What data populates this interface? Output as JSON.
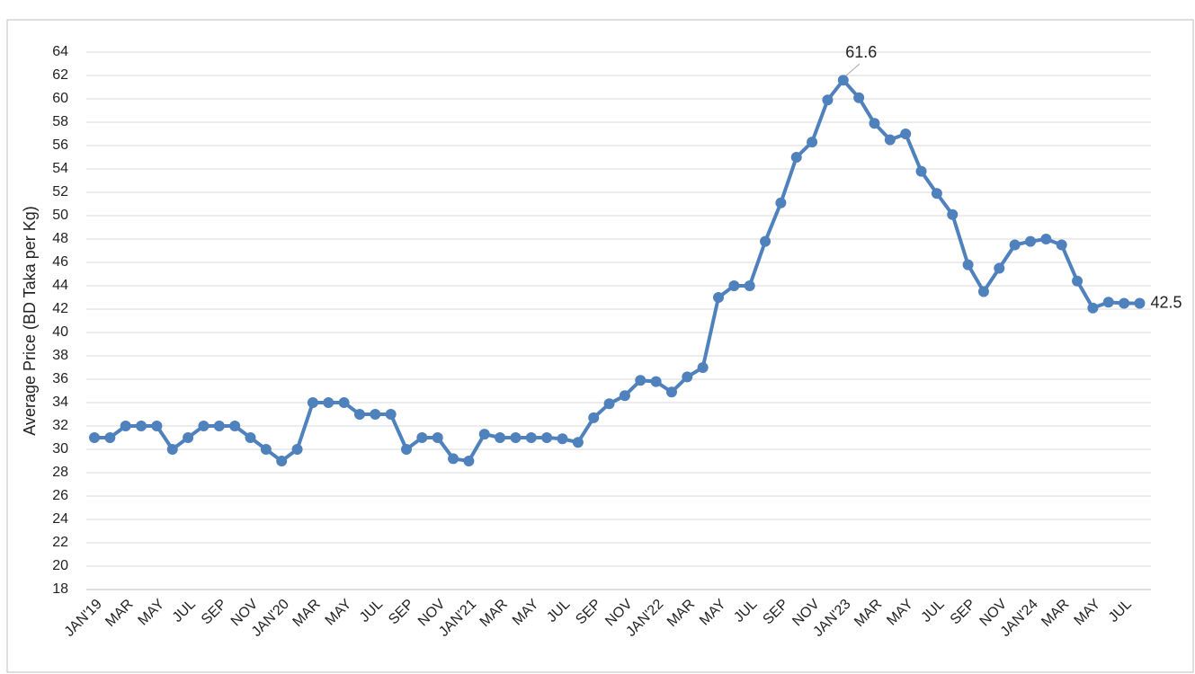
{
  "chart_data": {
    "type": "line",
    "y_label": "Average Price (BD Taka per Kg)",
    "categories": [
      "JAN'19",
      null,
      "MAR",
      null,
      "MAY",
      null,
      "JUL",
      null,
      "SEP",
      null,
      "NOV",
      null,
      "JAN'20",
      null,
      "MAR",
      null,
      "MAY",
      null,
      "JUL",
      null,
      "SEP",
      null,
      "NOV",
      null,
      "JAN'21",
      null,
      "MAR",
      null,
      "MAY",
      null,
      "JUL",
      null,
      "SEP",
      null,
      "NOV",
      null,
      "JAN'22",
      null,
      "MAR",
      null,
      "MAY",
      null,
      "JUL",
      null,
      "SEP",
      null,
      "NOV",
      null,
      "JAN'23",
      null,
      "MAR",
      null,
      "MAY",
      null,
      "JUL",
      null,
      "SEP",
      null,
      "NOV",
      null,
      "JAN'24",
      null,
      "MAR",
      null,
      "MAY",
      null,
      "JUL",
      null
    ],
    "series": [
      {
        "color": "#4f81bd",
        "values": [
          31,
          31,
          32,
          32,
          32,
          30,
          31,
          32,
          32,
          32,
          31,
          30,
          29,
          30,
          34,
          34,
          34,
          33,
          33,
          33,
          30,
          31,
          31,
          29.2,
          29,
          31.3,
          31,
          31,
          31,
          31,
          30.9,
          30.6,
          32.7,
          33.9,
          34.6,
          35.9,
          35.8,
          34.9,
          36.2,
          37,
          43,
          44,
          44,
          47.8,
          51.1,
          55,
          56.3,
          59.9,
          61.6,
          60.1,
          57.9,
          56.5,
          57,
          53.8,
          51.9,
          50.1,
          45.8,
          43.5,
          45.5,
          47.5,
          47.8,
          48,
          47.5,
          44.4,
          42.1,
          42.6,
          42.5,
          42.5
        ],
        "value_labels": [
          null,
          null,
          null,
          null,
          null,
          null,
          null,
          null,
          null,
          null,
          null,
          null,
          null,
          null,
          null,
          null,
          null,
          null,
          null,
          null,
          null,
          null,
          null,
          null,
          null,
          null,
          null,
          null,
          null,
          null,
          null,
          null,
          null,
          null,
          null,
          null,
          null,
          null,
          null,
          null,
          null,
          null,
          null,
          null,
          null,
          null,
          null,
          null,
          "61.6",
          null,
          null,
          null,
          null,
          null,
          null,
          null,
          null,
          null,
          null,
          null,
          null,
          null,
          null,
          null,
          null,
          null,
          null,
          "42.5"
        ]
      }
    ],
    "ylim": [
      18,
      64
    ],
    "yticks": [
      18,
      20,
      22,
      24,
      26,
      28,
      30,
      32,
      34,
      36,
      38,
      40,
      42,
      44,
      46,
      48,
      50,
      52,
      54,
      56,
      58,
      60,
      62,
      64
    ],
    "grid": true
  }
}
